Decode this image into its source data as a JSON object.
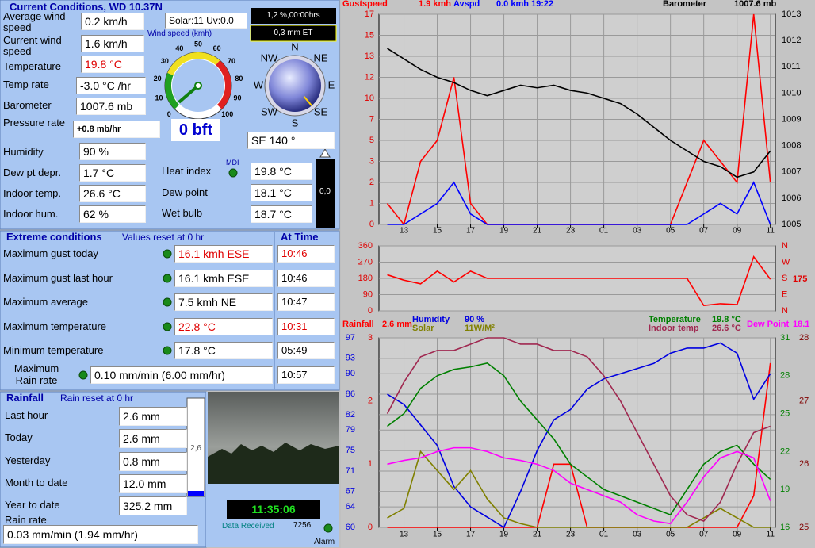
{
  "current": {
    "title": "Current Conditions, WD 10.37N",
    "rows": [
      {
        "label": "Average wind speed",
        "value": "0.2 km/h"
      },
      {
        "label": "Current wind speed",
        "value": "1.6 km/h"
      },
      {
        "label": "Temperature",
        "value": "19.8 °C",
        "color": "#e00000"
      },
      {
        "label": "Temp rate",
        "value": "-3.0 °C /hr"
      },
      {
        "label": "Barometer",
        "value": "1007.6 mb"
      },
      {
        "label": "Pressure rate",
        "value": "+0.8 mb/hr"
      },
      {
        "label": "Humidity",
        "value": "90 %"
      },
      {
        "label": "Dew pt depr.",
        "value": "1.7 °C"
      },
      {
        "label": "Indoor temp.",
        "value": "26.6 °C"
      },
      {
        "label": "Indoor hum.",
        "value": "62 %"
      },
      {
        "label": "Heat index",
        "value": "19.8 °C"
      },
      {
        "label": "Dew point",
        "value": "18.1 °C"
      },
      {
        "label": "Wet bulb",
        "value": "18.7 °C"
      }
    ],
    "solar": "Solar:11 Uv:0.0",
    "sun_hours": "1,2 %,00:00hrs",
    "et": "0,3 mm ET",
    "beaufort": "0 bft",
    "mdi": "MDI",
    "indoor_bar": "0,0",
    "wind_gauge": {
      "label": "Wind speed (kmh)",
      "ticks": [
        0,
        10,
        20,
        30,
        40,
        50,
        60,
        70,
        80,
        90,
        100
      ],
      "value": 1.6
    },
    "compass": {
      "points": [
        "N",
        "NE",
        "E",
        "SE",
        "S",
        "SW",
        "W",
        "NW"
      ],
      "direction": 140,
      "text": "SE 140 °"
    }
  },
  "extremes": {
    "title": "Extreme conditions",
    "note": "Values reset at 0 hr",
    "time_header": "At Time",
    "rows": [
      {
        "label": "Maximum gust today",
        "value": "16.1 kmh ESE",
        "time": "10:46",
        "color": "#e00000"
      },
      {
        "label": "Maximum gust last hour",
        "value": "16.1 kmh ESE",
        "time": "10:46"
      },
      {
        "label": "Maximum average",
        "value": "7.5 kmh  NE",
        "time": "10:47"
      },
      {
        "label": "Maximum temperature",
        "value": "22.8 °C",
        "time": "10:31",
        "color": "#e00000"
      },
      {
        "label": "Minimum temperature",
        "value": "17.8 °C",
        "time": "05:49"
      },
      {
        "label": "Maximum Rain rate",
        "value": "0.10 mm/min (6.00 mm/hr)",
        "time": "10:57"
      }
    ]
  },
  "rainfall": {
    "title": "Rainfall",
    "note": "Rain reset at 0 hr",
    "rows": [
      {
        "label": "Last hour",
        "value": "2.6 mm"
      },
      {
        "label": "Today",
        "value": "2.6 mm"
      },
      {
        "label": "Yesterday",
        "value": "0.8 mm"
      },
      {
        "label": "Month to date",
        "value": "12.0 mm"
      },
      {
        "label": "Year to date",
        "value": "325.2 mm"
      }
    ],
    "bar": "2,6",
    "rate_label": "Rain rate",
    "rate": "0.03 mm/min (1.94 mm/hr)"
  },
  "status": {
    "clock": "11:35:06",
    "received": "Data Received",
    "count": "7256",
    "alarm": "Alarm"
  },
  "chart_data": [
    {
      "type": "line",
      "grid": true,
      "x": [
        12,
        13,
        14,
        15,
        16,
        17,
        18,
        19,
        20,
        21,
        22,
        23,
        24,
        25,
        26,
        27,
        28,
        29,
        30,
        31,
        32,
        33,
        34,
        35
      ],
      "xlim": [
        11.5,
        35.3
      ],
      "xticks": [
        13,
        15,
        17,
        19,
        21,
        23,
        {
          "value": 25,
          "label": "01"
        },
        {
          "value": 27,
          "label": "03"
        },
        {
          "value": 29,
          "label": "05"
        },
        {
          "value": 31,
          "label": "07"
        },
        {
          "value": 33,
          "label": "09"
        },
        {
          "value": 35,
          "label": "11"
        }
      ],
      "ylim": [
        0,
        17
      ],
      "yscale": "nonlinear",
      "yticks": [
        0,
        1,
        2,
        3,
        5,
        7,
        10,
        12,
        13,
        15,
        17
      ],
      "ycolor": "#e00000",
      "y2lim": [
        1005,
        1013
      ],
      "y2ticks": [
        1005,
        1006,
        1007,
        1008,
        1009,
        1010,
        1011,
        1012,
        1013
      ],
      "y2color": "#000000",
      "series": [
        {
          "name": "Gustspeed",
          "reading": "1.9 kmh",
          "color": "#ff0000",
          "values": [
            1,
            0,
            3,
            5,
            12,
            1,
            0,
            0,
            0,
            0,
            0,
            0,
            0,
            0,
            0,
            0,
            0,
            0,
            2,
            5,
            3,
            2,
            17,
            2
          ]
        },
        {
          "name": "Avspd",
          "reading": "0.0 kmh 19:22",
          "color": "#0000ff",
          "values": [
            0,
            0,
            0.5,
            1,
            2,
            0.5,
            0,
            0,
            0,
            0,
            0,
            0,
            0,
            0,
            0,
            0,
            0,
            0,
            0,
            0.5,
            1,
            0.5,
            2,
            0
          ]
        },
        {
          "name": "Barometer",
          "reading": "1007.6 mb",
          "color": "#000000",
          "axis": "y2",
          "values": [
            1011.7,
            1011.3,
            1010.9,
            1010.6,
            1010.4,
            1010.1,
            1009.9,
            1010.1,
            1010.3,
            1010.2,
            1010.3,
            1010.1,
            1010.0,
            1009.8,
            1009.6,
            1009.2,
            1008.7,
            1008.2,
            1007.8,
            1007.4,
            1007.2,
            1006.8,
            1007.0,
            1007.8
          ]
        }
      ]
    },
    {
      "type": "line",
      "grid": true,
      "x": [
        12,
        13,
        14,
        15,
        16,
        17,
        18,
        19,
        20,
        21,
        22,
        23,
        24,
        25,
        26,
        27,
        28,
        29,
        30,
        31,
        32,
        33,
        34,
        35
      ],
      "xlim": [
        11.5,
        35.3
      ],
      "ylim": [
        0,
        360
      ],
      "yticks": [
        0,
        90,
        180,
        270,
        360
      ],
      "ycolor": "#e00000",
      "y2lim": [
        0,
        360
      ],
      "y2ticks": [
        {
          "value": 0,
          "label": "N"
        },
        {
          "value": 90,
          "label": "E"
        },
        {
          "value": 180,
          "label": "S"
        },
        {
          "value": 270,
          "label": "W"
        },
        {
          "value": 360,
          "label": "N"
        }
      ],
      "y2color": "#e00000",
      "annotation": 175,
      "series": [
        {
          "color": "#ff0000",
          "values": [
            200,
            170,
            150,
            220,
            160,
            220,
            180,
            180,
            180,
            180,
            180,
            180,
            180,
            180,
            180,
            180,
            180,
            180,
            180,
            30,
            40,
            35,
            300,
            175
          ]
        }
      ]
    },
    {
      "type": "line",
      "grid": true,
      "x": [
        12,
        13,
        14,
        15,
        16,
        17,
        18,
        19,
        20,
        21,
        22,
        23,
        24,
        25,
        26,
        27,
        28,
        29,
        30,
        31,
        32,
        33,
        34,
        35
      ],
      "xlim": [
        11.5,
        35.3
      ],
      "xticks": [
        13,
        15,
        17,
        19,
        21,
        23,
        {
          "value": 25,
          "label": "01"
        },
        {
          "value": 27,
          "label": "03"
        },
        {
          "value": 29,
          "label": "05"
        },
        {
          "value": 31,
          "label": "07"
        },
        {
          "value": 33,
          "label": "09"
        },
        {
          "value": 35,
          "label": "11"
        }
      ],
      "ylim": [
        60,
        97
      ],
      "yticks": [
        60,
        64,
        67,
        71,
        75,
        79,
        82,
        86,
        90,
        93,
        97
      ],
      "ycolor": "#0000e0",
      "y2lim": [
        0,
        3
      ],
      "y2ticks": [
        0,
        1,
        2,
        3
      ],
      "y2color": "#e00000",
      "y3lim": [
        16,
        31
      ],
      "y3ticks": [
        16,
        19,
        22,
        25,
        28,
        31
      ],
      "y3color": "#008000",
      "y4lim": [
        25,
        28
      ],
      "y4ticks": [
        25,
        26,
        27,
        28
      ],
      "y4color": "#800000",
      "y5lim": [
        0,
        100
      ],
      "series": [
        {
          "name": "Rainfall",
          "reading": "2.6 mm",
          "color": "#ff0000",
          "axis": "y2",
          "values": [
            0,
            0,
            0,
            0,
            0,
            0,
            0,
            0,
            0,
            0,
            1,
            1,
            0,
            0,
            0,
            0,
            0,
            0,
            0,
            0,
            0,
            0,
            0.5,
            2.6
          ]
        },
        {
          "name": "Humidity",
          "reading": "90 %",
          "color": "#0000e0",
          "values": [
            86,
            84,
            80,
            76,
            68,
            64,
            62,
            60,
            67,
            75,
            81,
            83,
            87,
            89,
            90,
            91,
            92,
            94,
            95,
            95,
            96,
            94,
            85,
            90
          ]
        },
        {
          "name": "Solar",
          "reading": "11W/M²",
          "color": "#808000",
          "axis": "y5",
          "values": [
            5,
            10,
            40,
            30,
            20,
            30,
            15,
            5,
            2,
            0,
            0,
            0,
            0,
            0,
            0,
            0,
            0,
            0,
            0,
            5,
            10,
            5,
            0,
            0
          ]
        },
        {
          "name": "Temperature",
          "reading": "19.8 °C",
          "color": "#008000",
          "axis": "y3",
          "values": [
            24,
            25,
            27,
            28,
            28.5,
            28.7,
            29,
            28,
            26,
            24.5,
            23,
            21,
            20,
            19,
            18.5,
            18,
            17.5,
            17,
            19,
            21,
            22,
            22.5,
            21,
            19.8
          ]
        },
        {
          "name": "Indoor temp",
          "reading": "26.6 °C",
          "color": "#a02850",
          "axis": "y4",
          "values": [
            26.8,
            27.3,
            27.7,
            27.8,
            27.8,
            27.9,
            28,
            28,
            27.9,
            27.9,
            27.8,
            27.8,
            27.7,
            27.4,
            27,
            26.5,
            26,
            25.5,
            25.2,
            25.1,
            25.4,
            26,
            26.5,
            26.6
          ]
        },
        {
          "name": "Dew Point",
          "reading": "18.1",
          "color": "#ff00ff",
          "axis": "y3",
          "values": [
            21,
            21.3,
            21.5,
            22,
            22.3,
            22.3,
            22,
            21.5,
            21.3,
            21,
            20.5,
            19.5,
            19,
            18.5,
            18,
            17,
            16.5,
            16.3,
            18,
            20,
            21.5,
            22,
            21.5,
            18.1
          ]
        }
      ]
    }
  ]
}
